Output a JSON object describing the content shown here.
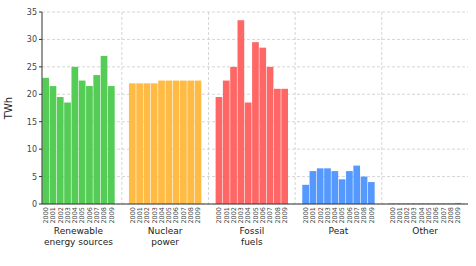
{
  "chart_data": {
    "type": "bar",
    "y_label": "TWh",
    "categories": [
      "2000",
      "2001",
      "2002",
      "2003",
      "2004",
      "2005",
      "2006",
      "2007",
      "2008",
      "2009"
    ],
    "series": [
      {
        "name": "Renewable\nenergy sources",
        "color": "#55cc55",
        "values": [
          23,
          21.5,
          19.5,
          18.5,
          25,
          22.5,
          21.5,
          23.5,
          27,
          21.5
        ]
      },
      {
        "name": "Nuclear\npower",
        "color": "#ffbb44",
        "values": [
          22,
          22,
          22,
          22,
          22.5,
          22.5,
          22.5,
          22.5,
          22.5,
          22.5
        ]
      },
      {
        "name": "Fossil\nfuels",
        "color": "#ff6666",
        "values": [
          19.5,
          22.5,
          25,
          33.5,
          18.5,
          29.5,
          28.5,
          25,
          21,
          21
        ]
      },
      {
        "name": "Peat",
        "color": "#5599ff",
        "values": [
          3.5,
          6,
          6.5,
          6.5,
          6,
          4.5,
          6,
          7,
          5,
          4
        ]
      },
      {
        "name": "Other",
        "color": "#44cccc",
        "values": [
          0.1,
          0.1,
          0.1,
          0.1,
          0.1,
          0.1,
          0.1,
          0.1,
          0.1,
          0.2
        ]
      }
    ],
    "ylim": [
      0,
      35
    ],
    "yticks": [
      0,
      5,
      10,
      15,
      20,
      25,
      30,
      35
    ],
    "grid": true
  }
}
